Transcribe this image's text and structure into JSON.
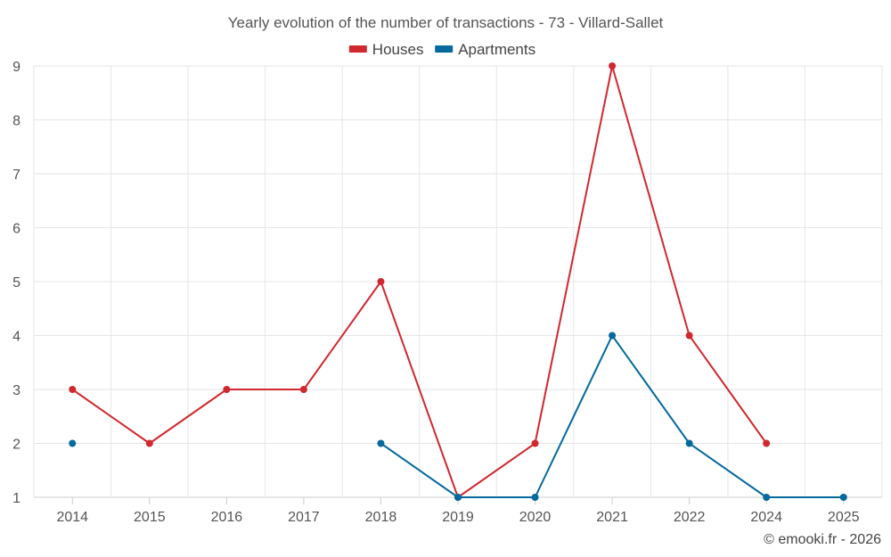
{
  "chart_data": {
    "type": "line",
    "title": "Yearly evolution of the number of transactions - 73 - Villard-Sallet",
    "categories": [
      "2014",
      "2015",
      "2016",
      "2017",
      "2018",
      "2019",
      "2020",
      "2021",
      "2022",
      "2024",
      "2025"
    ],
    "ylim": [
      1,
      9
    ],
    "yticks": [
      1,
      2,
      3,
      4,
      5,
      6,
      7,
      8,
      9
    ],
    "grid": true,
    "legend_position": "top-center",
    "series": [
      {
        "name": "Houses",
        "color": "#d0282e",
        "values": [
          3,
          2,
          3,
          3,
          5,
          1,
          2,
          9,
          4,
          2,
          null
        ]
      },
      {
        "name": "Apartments",
        "color": "#04699c",
        "values": [
          2,
          null,
          null,
          null,
          2,
          1,
          1,
          4,
          2,
          1,
          1
        ]
      }
    ],
    "credit": "© emooki.fr - 2026"
  }
}
